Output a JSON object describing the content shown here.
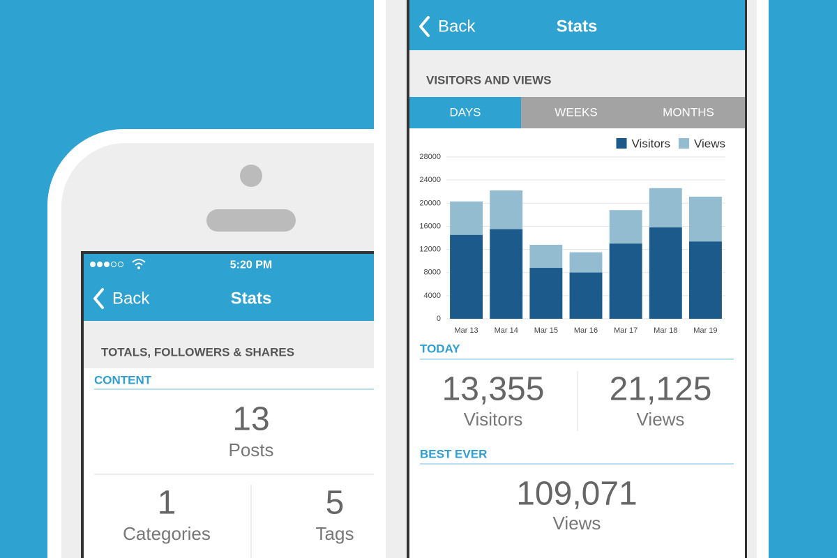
{
  "left_phone": {
    "status_bar": {
      "time": "5:20 PM"
    },
    "nav": {
      "back": "Back",
      "title": "Stats"
    },
    "section_title": "TOTALS, FOLLOWERS & SHARES",
    "content": {
      "heading": "CONTENT",
      "posts": {
        "value": "13",
        "label": "Posts"
      },
      "categories": {
        "value": "1",
        "label": "Categories"
      },
      "tags": {
        "value": "5",
        "label": "Tags"
      }
    }
  },
  "right_phone": {
    "nav": {
      "back": "Back",
      "title": "Stats"
    },
    "section_title": "VISITORS AND VIEWS",
    "tabs": [
      "DAYS",
      "WEEKS",
      "MONTHS"
    ],
    "today": {
      "heading": "TODAY",
      "visitors": {
        "value": "13,355",
        "label": "Visitors"
      },
      "views": {
        "value": "21,125",
        "label": "Views"
      }
    },
    "best_ever": {
      "heading": "BEST EVER",
      "views": {
        "value": "109,071",
        "label": "Views"
      }
    }
  },
  "chart_data": {
    "type": "bar",
    "barmode": "overlay",
    "categories": [
      "Mar 13",
      "Mar 14",
      "Mar 15",
      "Mar 16",
      "Mar 17",
      "Mar 18",
      "Mar 19"
    ],
    "series": [
      {
        "name": "Visitors",
        "color": "#1b5a8a",
        "values": [
          14500,
          15500,
          8800,
          8000,
          13000,
          15800,
          13355
        ]
      },
      {
        "name": "Views",
        "color": "#93bcd1",
        "values": [
          20300,
          22200,
          12800,
          11500,
          18800,
          22600,
          21125
        ]
      }
    ],
    "ylim": [
      0,
      28000
    ],
    "yticks": [
      0,
      4000,
      8000,
      12000,
      16000,
      20000,
      24000,
      28000
    ],
    "grid": true,
    "legend": "top-right"
  }
}
